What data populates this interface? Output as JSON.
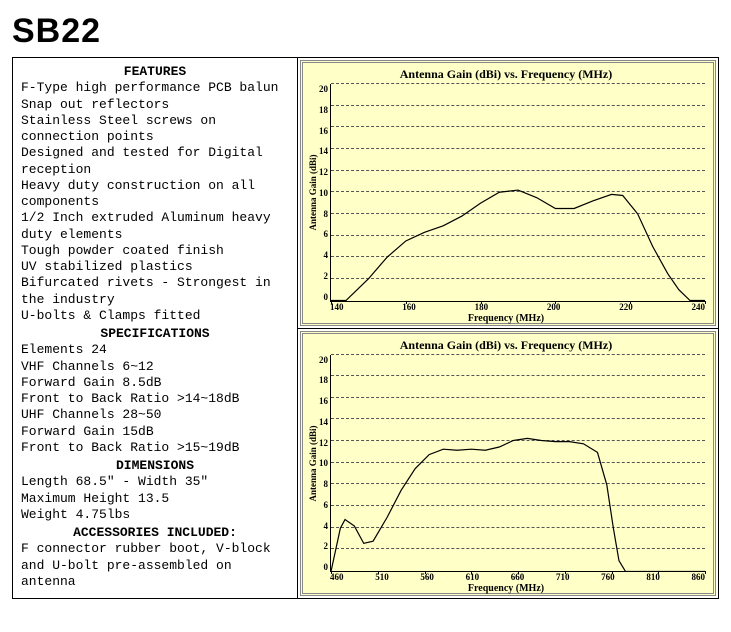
{
  "product_title": "SB22",
  "sections": {
    "features": {
      "heading": "FEATURES",
      "lines": [
        "F-Type high performance PCB balun",
        "Snap out reflectors",
        "Stainless Steel screws on connection points",
        "Designed and tested for Digital reception",
        "Heavy duty construction on all components",
        "1/2 Inch extruded Aluminum heavy duty elements",
        "Tough powder coated finish",
        "UV stabilized plastics",
        "Bifurcated rivets - Strongest in the industry",
        "U-bolts & Clamps fitted"
      ]
    },
    "specifications": {
      "heading": "SPECIFICATIONS",
      "lines": [
        "Elements 24",
        "VHF Channels 6~12",
        "Forward Gain 8.5dB",
        "Front to Back Ratio >14~18dB",
        "UHF Channels 28~50",
        "Forward Gain 15dB",
        "Front to Back Ratio >15~19dB"
      ]
    },
    "dimensions": {
      "heading": "DIMENSIONS",
      "lines": [
        "Length 68.5\" - Width 35\"",
        "Maximum Height 13.5",
        "Weight 4.75lbs"
      ]
    },
    "accessories": {
      "heading": "ACCESSORIES INCLUDED:",
      "lines": [
        "F connector rubber boot, V-block and U-bolt pre-assembled on antenna"
      ]
    }
  },
  "charts": {
    "chart1": {
      "type": "line",
      "title": "Antenna Gain (dBi) vs. Frequency (MHz)",
      "xlabel": "Frequency (MHz)",
      "ylabel": "Antenna Gain (dBi)",
      "background_color": "#ffffc8",
      "grid_color": "#555555",
      "line_color": "#000000",
      "line_width": 1.2,
      "ylim": [
        0,
        20
      ],
      "yticks": [
        0,
        2,
        4,
        6,
        8,
        10,
        12,
        14,
        16,
        18,
        20
      ],
      "xlim": [
        140,
        240
      ],
      "xticks": [
        140,
        160,
        180,
        200,
        220,
        240
      ],
      "data": [
        [
          140,
          0
        ],
        [
          144,
          0
        ],
        [
          150,
          2
        ],
        [
          155,
          4
        ],
        [
          160,
          5.5
        ],
        [
          165,
          6.3
        ],
        [
          170,
          6.9
        ],
        [
          175,
          7.8
        ],
        [
          180,
          9.0
        ],
        [
          185,
          10.0
        ],
        [
          190,
          10.2
        ],
        [
          195,
          9.5
        ],
        [
          200,
          8.5
        ],
        [
          205,
          8.5
        ],
        [
          210,
          9.2
        ],
        [
          215,
          9.8
        ],
        [
          218,
          9.7
        ],
        [
          222,
          8.0
        ],
        [
          226,
          5.0
        ],
        [
          230,
          2.5
        ],
        [
          233,
          1.0
        ],
        [
          236,
          0
        ],
        [
          240,
          0
        ]
      ]
    },
    "chart2": {
      "type": "line",
      "title": "Antenna Gain (dBi) vs. Frequency (MHz)",
      "xlabel": "Frequency (MHz)",
      "ylabel": "Antenna Gain (dBi)",
      "background_color": "#ffffc8",
      "grid_color": "#555555",
      "line_color": "#000000",
      "line_width": 1.2,
      "ylim": [
        0,
        20
      ],
      "yticks": [
        0,
        2,
        4,
        6,
        8,
        10,
        12,
        14,
        16,
        18,
        20
      ],
      "xlim": [
        460,
        860
      ],
      "xticks": [
        460,
        510,
        560,
        610,
        660,
        710,
        760,
        810,
        860
      ],
      "data": [
        [
          460,
          0
        ],
        [
          465,
          2
        ],
        [
          470,
          4
        ],
        [
          475,
          4.8
        ],
        [
          485,
          4.2
        ],
        [
          495,
          2.6
        ],
        [
          505,
          2.8
        ],
        [
          520,
          5.0
        ],
        [
          535,
          7.5
        ],
        [
          550,
          9.5
        ],
        [
          565,
          10.8
        ],
        [
          580,
          11.3
        ],
        [
          595,
          11.2
        ],
        [
          610,
          11.3
        ],
        [
          625,
          11.2
        ],
        [
          640,
          11.5
        ],
        [
          655,
          12.1
        ],
        [
          670,
          12.3
        ],
        [
          685,
          12.1
        ],
        [
          700,
          12.0
        ],
        [
          715,
          12.0
        ],
        [
          730,
          11.8
        ],
        [
          745,
          11.0
        ],
        [
          755,
          8.0
        ],
        [
          762,
          4.0
        ],
        [
          768,
          1.0
        ],
        [
          775,
          0
        ],
        [
          800,
          0
        ],
        [
          860,
          0
        ]
      ]
    }
  }
}
